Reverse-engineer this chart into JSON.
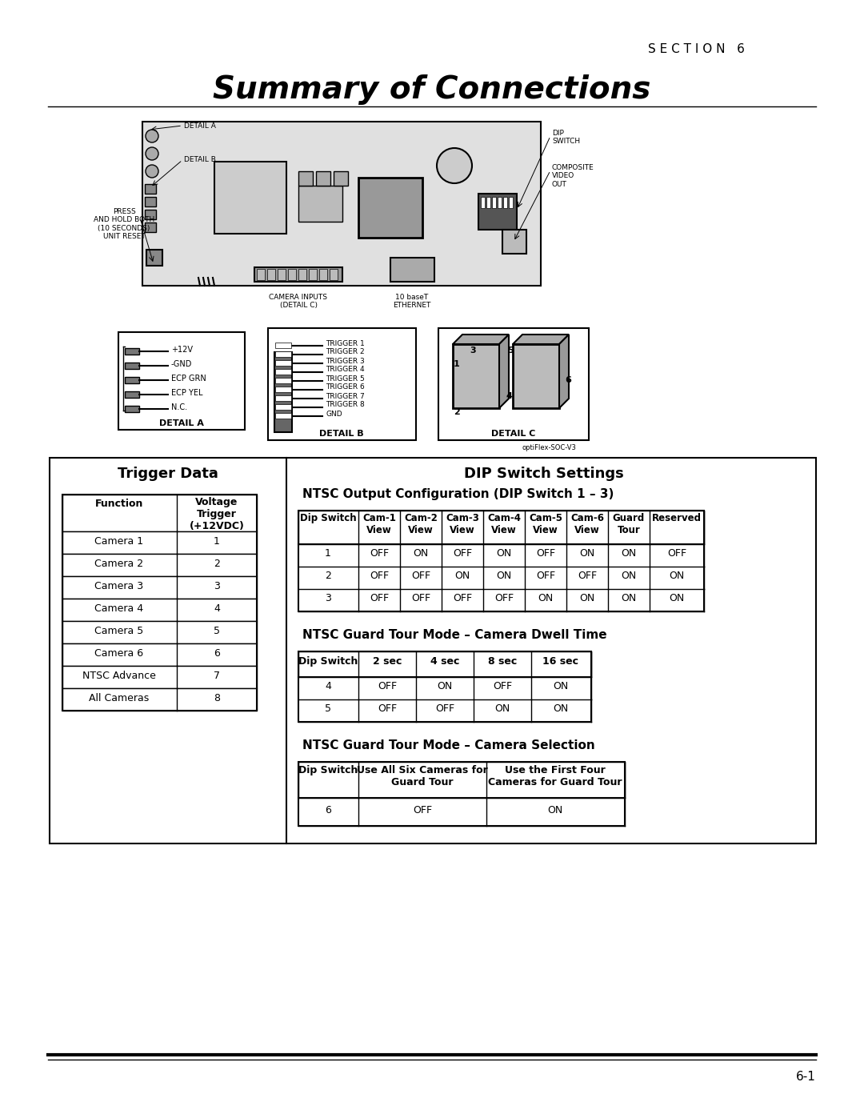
{
  "section_label": "S E C T I O N   6",
  "title": "Summary of Connections",
  "page_num": "6-1",
  "trigger_data_title": "Trigger Data",
  "dip_switch_title": "DIP Switch Settings",
  "ntsc_output_title": "NTSC Output Configuration (DIP Switch 1 – 3)",
  "ntsc_dwell_title": "NTSC Guard Tour Mode – Camera Dwell Time",
  "ntsc_selection_title": "NTSC Guard Tour Mode – Camera Selection",
  "trigger_headers": [
    "Function",
    "Voltage\nTrigger\n(+12VDC)"
  ],
  "trigger_rows": [
    [
      "Camera 1",
      "1"
    ],
    [
      "Camera 2",
      "2"
    ],
    [
      "Camera 3",
      "3"
    ],
    [
      "Camera 4",
      "4"
    ],
    [
      "Camera 5",
      "5"
    ],
    [
      "Camera 6",
      "6"
    ],
    [
      "NTSC Advance",
      "7"
    ],
    [
      "All Cameras",
      "8"
    ]
  ],
  "ntsc_output_headers": [
    "Dip Switch",
    "Cam-1\nView",
    "Cam-2\nView",
    "Cam-3\nView",
    "Cam-4\nView",
    "Cam-5\nView",
    "Cam-6\nView",
    "Guard\nTour",
    "Reserved"
  ],
  "ntsc_output_rows": [
    [
      "1",
      "OFF",
      "ON",
      "OFF",
      "ON",
      "OFF",
      "ON",
      "ON",
      "OFF"
    ],
    [
      "2",
      "OFF",
      "OFF",
      "ON",
      "ON",
      "OFF",
      "OFF",
      "ON",
      "ON"
    ],
    [
      "3",
      "OFF",
      "OFF",
      "OFF",
      "OFF",
      "ON",
      "ON",
      "ON",
      "ON"
    ]
  ],
  "dwell_headers": [
    "Dip Switch",
    "2 sec",
    "4 sec",
    "8 sec",
    "16 sec"
  ],
  "dwell_rows": [
    [
      "4",
      "OFF",
      "ON",
      "OFF",
      "ON"
    ],
    [
      "5",
      "OFF",
      "OFF",
      "ON",
      "ON"
    ]
  ],
  "selection_headers": [
    "Dip Switch",
    "Use All Six Cameras for\nGuard Tour",
    "Use the First Four\nCameras for Guard Tour"
  ],
  "selection_rows": [
    [
      "6",
      "OFF",
      "ON"
    ]
  ],
  "detail_a_labels": [
    "+12V",
    "-GND",
    "ECP GRN",
    "ECP YEL",
    "N.C."
  ],
  "detail_b_labels": [
    "TRIGGER 1",
    "TRIGGER 2",
    "TRIGGER 3",
    "TRIGGER 4",
    "TRIGGER 5",
    "TRIGGER 6",
    "TRIGGER 7",
    "TRIGGER 8",
    "GND"
  ]
}
